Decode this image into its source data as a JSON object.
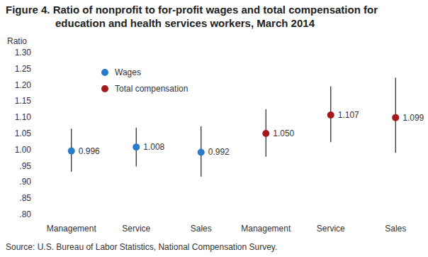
{
  "chart_data": {
    "type": "scatter",
    "title": "Figure 4. Ratio of nonprofit to for-profit wages and total compensation for education and health services workers, March 2014",
    "y_label": "Ratio",
    "source": "Source: U.S. Bureau of Labor Statistics, National Compensation Survey.",
    "categories": [
      "Management",
      "Service",
      "Sales",
      "Management",
      "Service",
      "Sales"
    ],
    "series": [
      {
        "name": "Wages",
        "color": "#2b7bc9",
        "marker": "circle",
        "values": [
          0.996,
          1.008,
          0.992,
          null,
          null,
          null
        ],
        "value_labels": [
          "0.996",
          "1.008",
          "0.992",
          null,
          null,
          null
        ],
        "lower": [
          0.932,
          0.948,
          0.917,
          null,
          null,
          null
        ],
        "upper": [
          1.065,
          1.068,
          1.072,
          null,
          null,
          null
        ]
      },
      {
        "name": "Total compensation",
        "color": "#a3191c",
        "marker": "circle",
        "values": [
          null,
          null,
          null,
          1.05,
          1.107,
          1.099
        ],
        "value_labels": [
          null,
          null,
          null,
          "1.050",
          "1.107",
          "1.099"
        ],
        "lower": [
          null,
          null,
          null,
          0.978,
          1.023,
          0.99
        ],
        "upper": [
          null,
          null,
          null,
          1.125,
          1.196,
          1.222
        ]
      }
    ],
    "ylim": [
      0.8,
      1.3
    ],
    "yticks": [
      {
        "value": 0.8,
        "label": ".80"
      },
      {
        "value": 0.85,
        "label": ".85"
      },
      {
        "value": 0.9,
        "label": ".90"
      },
      {
        "value": 0.95,
        "label": ".95"
      },
      {
        "value": 1.0,
        "label": "1.00"
      },
      1.05,
      {
        "value": 1.1,
        "label": "1.10"
      },
      1.15,
      {
        "value": 1.2,
        "label": "1.20"
      },
      1.25,
      {
        "value": 1.3,
        "label": "1.30"
      }
    ],
    "grid": false,
    "legend": "upper left",
    "data_labels": true
  }
}
